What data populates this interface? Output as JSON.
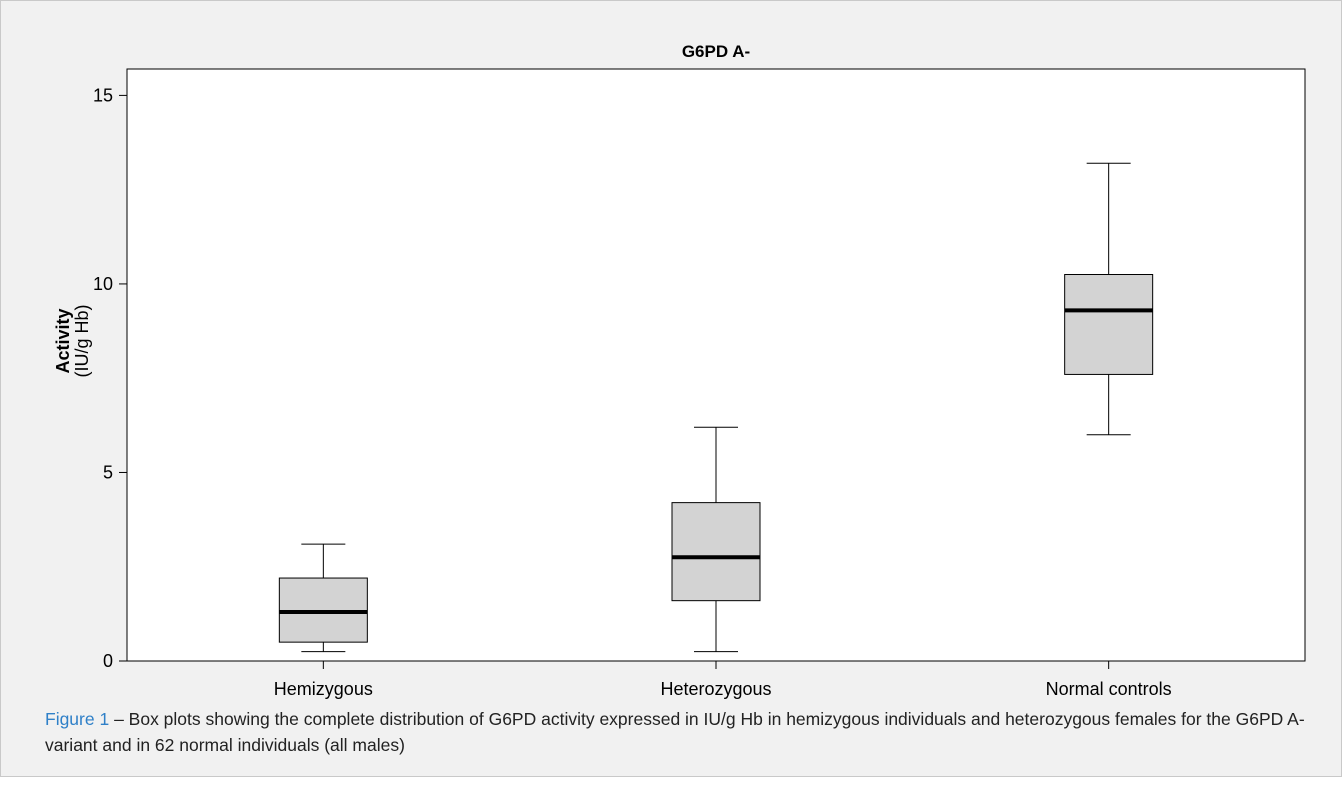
{
  "chart_data": {
    "type": "box",
    "title": "G6PD A-",
    "ylabel_main": "Activity",
    "ylabel_unit": "(IU/g Hb)",
    "xlabel": "",
    "ylim": [
      0,
      15.7
    ],
    "yticks": [
      0,
      5,
      10,
      15
    ],
    "categories": [
      "Hemizygous",
      "Heterozygous",
      "Normal controls"
    ],
    "boxes": [
      {
        "category": "Hemizygous",
        "min": 0.25,
        "q1": 0.5,
        "median": 1.3,
        "q3": 2.2,
        "max": 3.1
      },
      {
        "category": "Heterozygous",
        "min": 0.25,
        "q1": 1.6,
        "median": 2.75,
        "q3": 4.2,
        "max": 6.2
      },
      {
        "category": "Normal controls",
        "min": 6.0,
        "q1": 7.6,
        "median": 9.3,
        "q3": 10.25,
        "max": 13.2
      }
    ],
    "grid": false,
    "colors": {
      "box_fill": "#d3d3d3",
      "stroke": "#000000",
      "median": "#000000",
      "panel_bg": "#f1f1f1",
      "plot_bg": "#ffffff"
    }
  },
  "caption": {
    "label": "Figure 1",
    "text": " – Box plots showing the complete distribution of G6PD activity expressed in IU/g Hb in hemizygous individuals and heterozygous females for the G6PD A- variant and in 62 normal individuals (all males)"
  },
  "colors": {
    "caption_link": "#2f80c8"
  }
}
